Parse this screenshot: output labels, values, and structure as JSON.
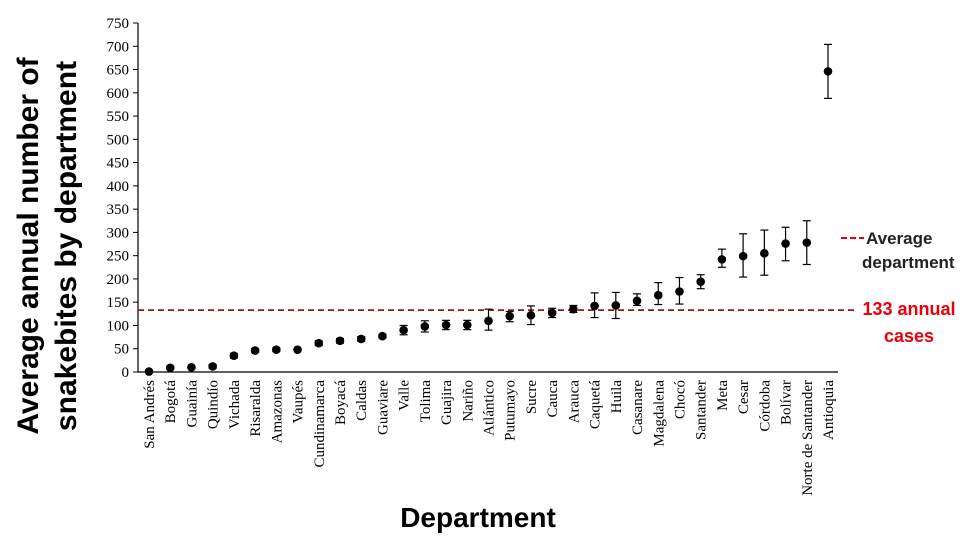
{
  "chart_data": {
    "type": "scatter",
    "xlabel": "Department",
    "ylabel_lines": [
      "Average annual number of",
      "snakebites by department"
    ],
    "ylim": [
      0,
      750
    ],
    "yticks": [
      0,
      50,
      100,
      150,
      200,
      250,
      300,
      350,
      400,
      450,
      500,
      550,
      600,
      650,
      700,
      750
    ],
    "grid": false,
    "categories": [
      "San Andrés",
      "Bogotá",
      "Guainía",
      "Quindío",
      "Vichada",
      "Risaralda",
      "Amazonas",
      "Vaupés",
      "Cundinamarca",
      "Boyacá",
      "Caldas",
      "Guaviare",
      "Valle",
      "Tolima",
      "Guajira",
      "Nariño",
      "Atlántico",
      "Putumayo",
      "Sucre",
      "Cauca",
      "Arauca",
      "Caquetá",
      "Huila",
      "Casanare",
      "Magdalena",
      "Chocó",
      "Santander",
      "Meta",
      "Cesar",
      "Córdoba",
      "Bolívar",
      "Norte de Santander",
      "Antioquia"
    ],
    "series": [
      {
        "values": [
          1,
          9,
          10,
          12,
          35,
          46,
          48,
          48,
          62,
          67,
          71,
          77,
          90,
          98,
          101,
          101,
          110,
          120,
          122,
          127,
          135,
          142,
          143,
          153,
          165,
          173,
          194,
          242,
          249,
          255,
          276,
          278,
          646
        ],
        "error_low": [
          0,
          3,
          2,
          4,
          5,
          4,
          4,
          2,
          5,
          5,
          5,
          4,
          10,
          12,
          10,
          10,
          20,
          12,
          20,
          10,
          7,
          25,
          28,
          10,
          20,
          27,
          15,
          17,
          45,
          47,
          37,
          47,
          58
        ],
        "error_high": [
          0,
          3,
          2,
          4,
          5,
          4,
          4,
          2,
          5,
          5,
          5,
          4,
          10,
          12,
          10,
          10,
          25,
          10,
          20,
          10,
          8,
          28,
          28,
          15,
          27,
          30,
          15,
          22,
          48,
          50,
          35,
          47,
          58
        ],
        "color": "#000000"
      }
    ],
    "reference_line": {
      "value": 133,
      "color": "#8b1a1a",
      "label_lines": [
        "Average",
        "department"
      ],
      "annotation_lines": [
        "133 annual",
        "cases"
      ],
      "annotation_color": "#e8000b",
      "legend_dash_color": "#e8000b"
    }
  }
}
